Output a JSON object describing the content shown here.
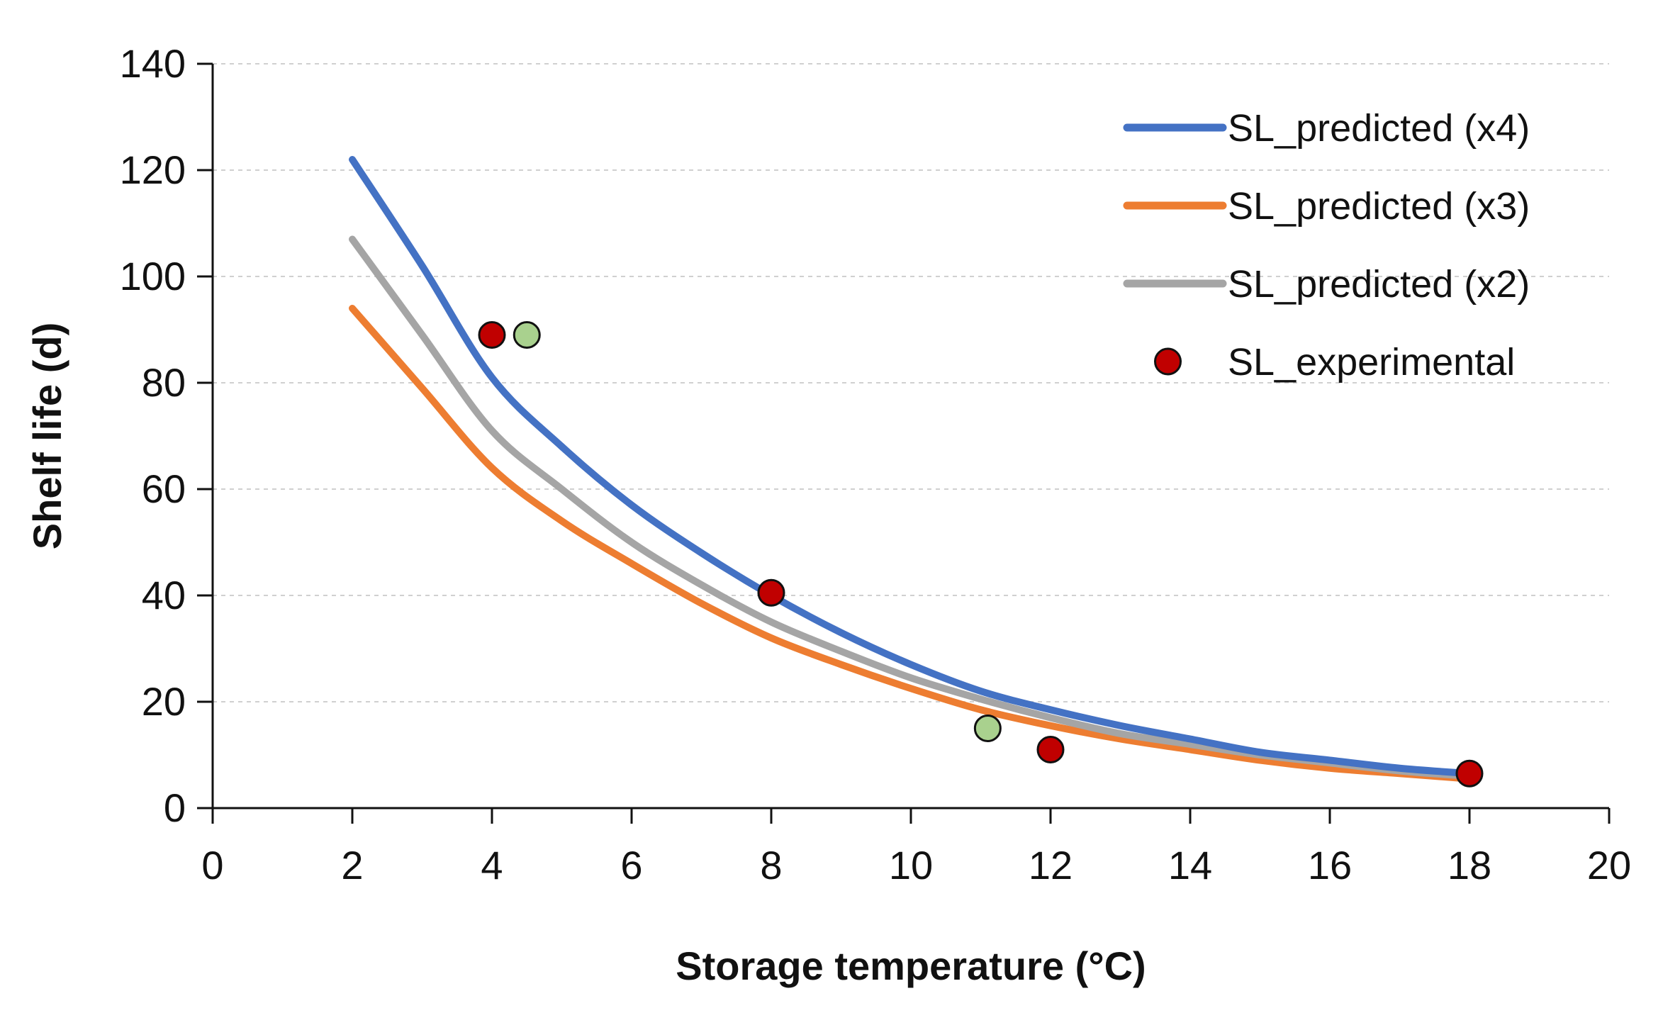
{
  "chart_data": {
    "type": "line",
    "title": "",
    "xlabel": "Storage temperature (°C)",
    "ylabel": "Shelf life (d)",
    "xlim": [
      0,
      20
    ],
    "ylim": [
      0,
      140
    ],
    "xticks": [
      0,
      2,
      4,
      6,
      8,
      10,
      12,
      14,
      16,
      18,
      20
    ],
    "yticks": [
      0,
      20,
      40,
      60,
      80,
      100,
      120,
      140
    ],
    "grid": "horizontal-dashed",
    "legend_position": "top-right",
    "series": [
      {
        "name": "SL_predicted (x4)",
        "kind": "line",
        "color": "#4472C4",
        "x": [
          2,
          3,
          4,
          5,
          6,
          7,
          8,
          9,
          10,
          11,
          12,
          13,
          14,
          15,
          16,
          17,
          18
        ],
        "y": [
          122,
          102,
          81,
          68,
          57,
          48,
          40,
          33,
          27,
          22,
          18.5,
          15.5,
          13,
          10.5,
          9,
          7.5,
          6.5
        ]
      },
      {
        "name": "SL_predicted (x3)",
        "kind": "line",
        "color": "#ED7D31",
        "x": [
          2,
          3,
          4,
          5,
          6,
          7,
          8,
          9,
          10,
          11,
          12,
          13,
          14,
          15,
          16,
          17,
          18
        ],
        "y": [
          94,
          79,
          64,
          54,
          46,
          38.5,
          32,
          27,
          22.5,
          18.5,
          15.5,
          13,
          11,
          9,
          7.5,
          6.5,
          5.5
        ]
      },
      {
        "name": "SL_predicted (x2)",
        "kind": "line",
        "color": "#A5A5A5",
        "x": [
          2,
          3,
          4,
          5,
          6,
          7,
          8,
          9,
          10,
          11,
          12,
          13,
          14,
          15,
          16,
          17,
          18
        ],
        "y": [
          107,
          89,
          71,
          60,
          50,
          42,
          35,
          29.5,
          24.5,
          20.5,
          17,
          14,
          12,
          10,
          8.5,
          7,
          6
        ]
      },
      {
        "name": "SL_experimental",
        "kind": "scatter",
        "color": "#C00000",
        "x": [
          4,
          8,
          12,
          18
        ],
        "y": [
          89,
          40.5,
          11,
          6.5
        ]
      },
      {
        "name": "",
        "kind": "scatter",
        "color": "#A9D18E",
        "legend": false,
        "x": [
          4.5,
          11.1
        ],
        "y": [
          89,
          15
        ]
      }
    ]
  }
}
